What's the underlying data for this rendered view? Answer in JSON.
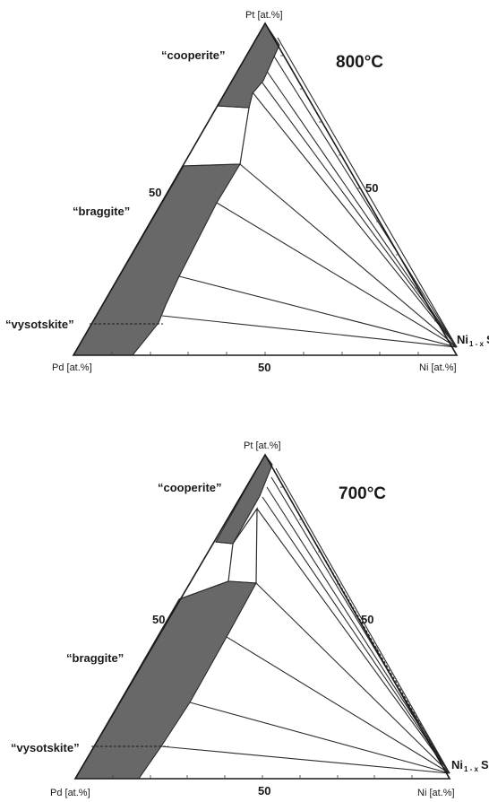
{
  "diagrams": [
    {
      "temperature": "800°C",
      "vertex_top": "Pt [at.%]",
      "vertex_left": "Pd [at.%]",
      "vertex_right": "Ni [at.%]",
      "fifty_left": "50",
      "fifty_right": "50",
      "fifty_bottom": "50",
      "phase_cooperite": "“cooperite”",
      "phase_braggite": "“braggite”",
      "phase_vysotskite": "“vysotskite”",
      "nis_base": "Ni",
      "nis_sub": "1 - x",
      "nis_tail": "S"
    },
    {
      "temperature": "700°C",
      "vertex_top": "Pt [at.%]",
      "vertex_left": "Pd [at.%]",
      "vertex_right": "Ni [at.%]",
      "fifty_left": "50",
      "fifty_right": "50",
      "fifty_bottom": "50",
      "phase_cooperite": "“cooperite”",
      "phase_braggite": "“braggite”",
      "phase_vysotskite": "“vysotskite”",
      "nis_base": "Ni",
      "nis_sub": "1 - x",
      "nis_tail": "S"
    }
  ]
}
